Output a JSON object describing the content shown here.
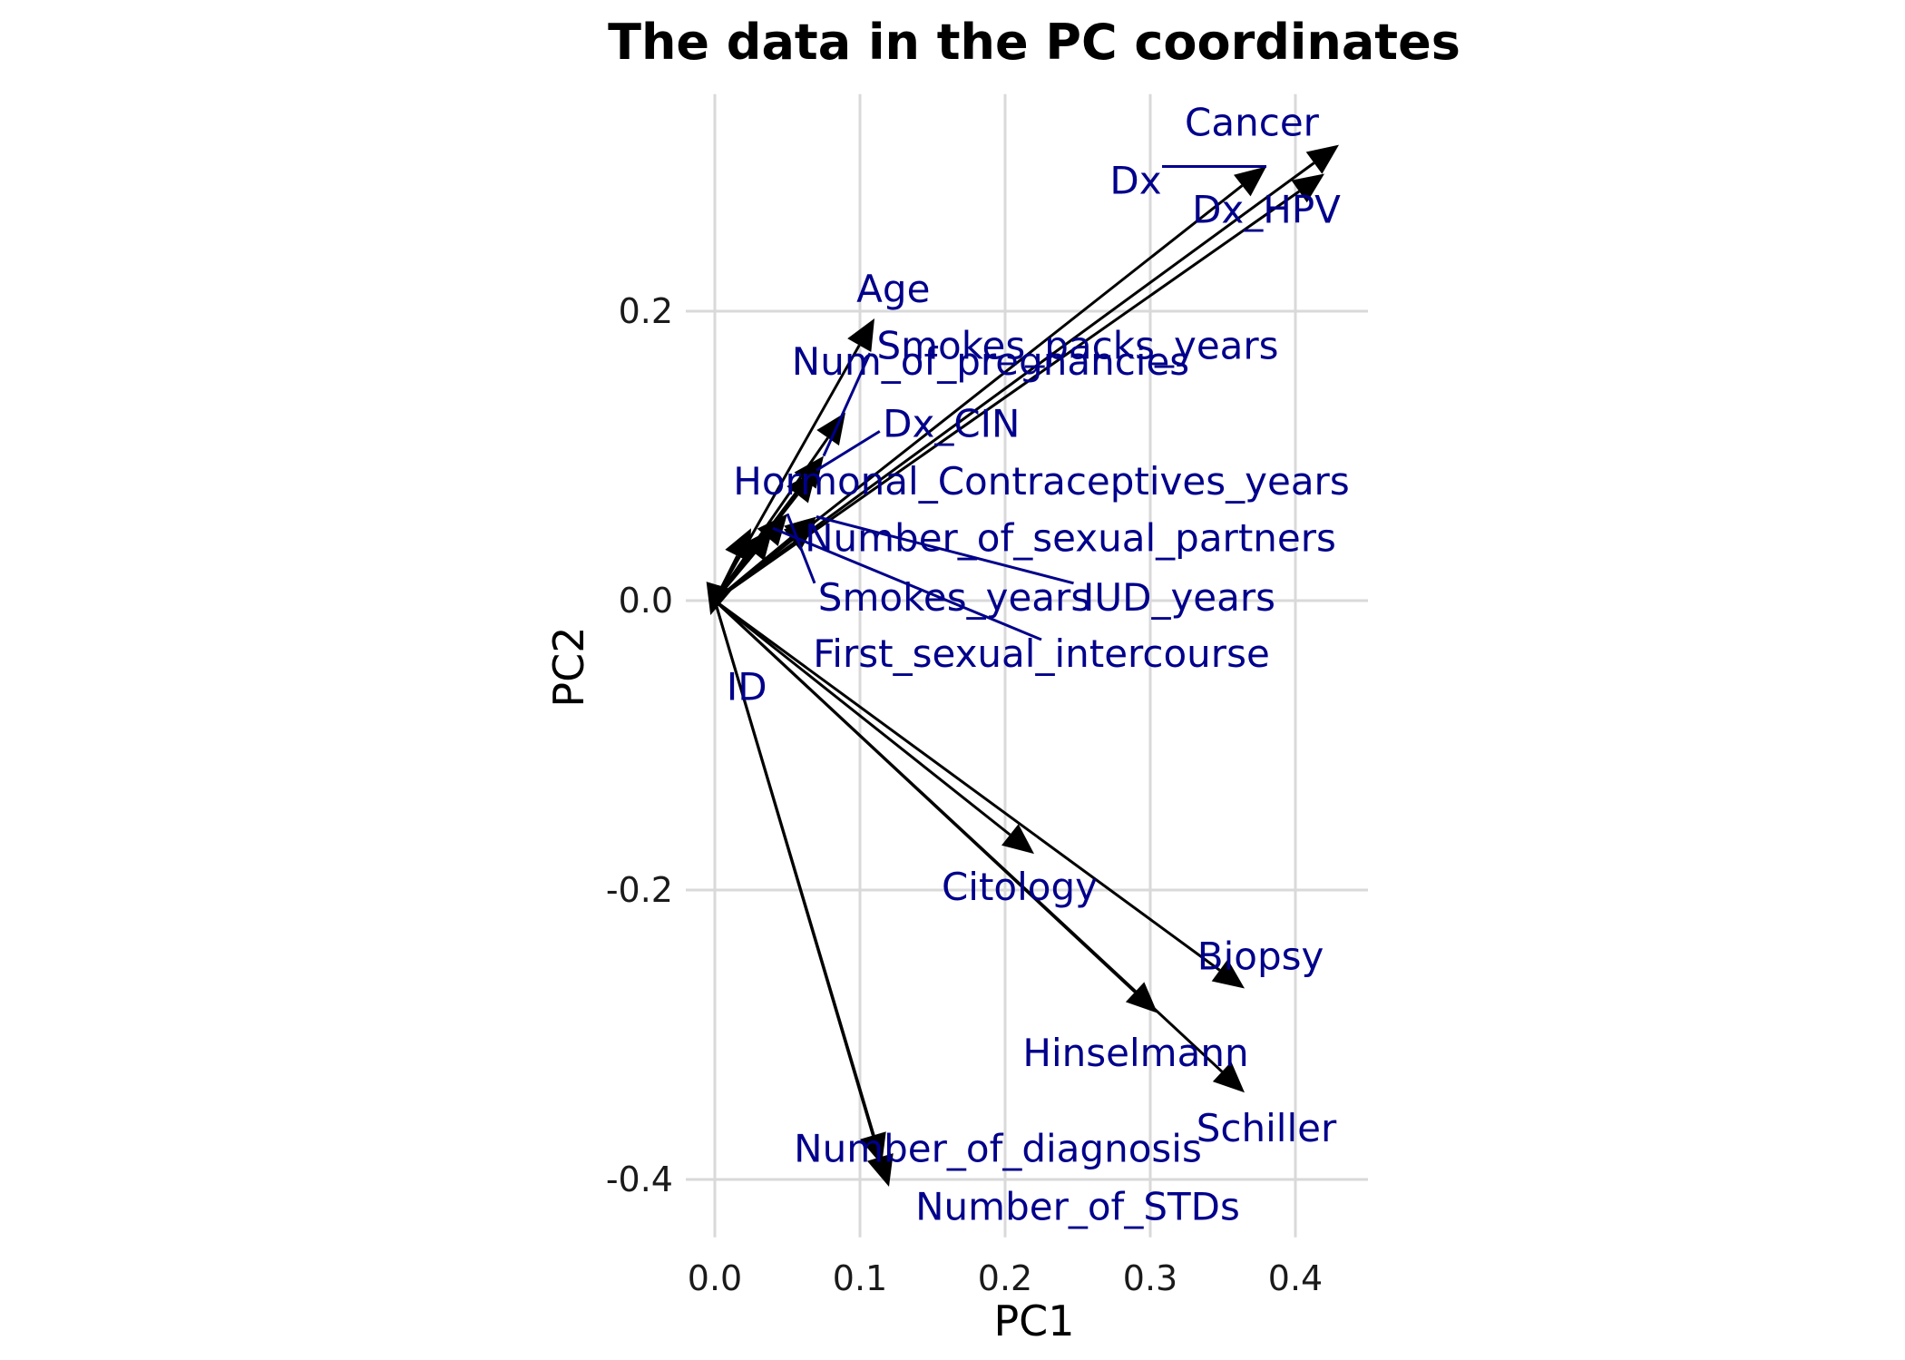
{
  "chart_data": {
    "type": "scatter",
    "subtype": "pca-loadings-biplot",
    "title": "The data in the PC coordinates",
    "xlabel": "PC1",
    "ylabel": "PC2",
    "xlim": [
      -0.02,
      0.45
    ],
    "ylim": [
      -0.44,
      0.35
    ],
    "x_ticks": [
      0.0,
      0.1,
      0.2,
      0.3,
      0.4
    ],
    "x_tick_labels": [
      "0.0",
      "0.1",
      "0.2",
      "0.3",
      "0.4"
    ],
    "y_ticks": [
      -0.4,
      -0.2,
      0.0,
      0.2
    ],
    "y_tick_labels": [
      "-0.4",
      "-0.2",
      "0.0",
      "0.2"
    ],
    "grid": true,
    "arrow_color": "#000000",
    "label_color": "#00008b",
    "vectors": [
      {
        "name": "Cancer",
        "x": 0.43,
        "y": 0.315,
        "label_x": 0.37,
        "label_y": 0.33,
        "leader": false
      },
      {
        "name": "Dx",
        "x": 0.38,
        "y": 0.3,
        "label_x": 0.29,
        "label_y": 0.29,
        "leader": true
      },
      {
        "name": "Dx_HPV",
        "x": 0.42,
        "y": 0.295,
        "label_x": 0.38,
        "label_y": 0.27,
        "leader": false
      },
      {
        "name": "Age",
        "x": 0.11,
        "y": 0.195,
        "label_x": 0.123,
        "label_y": 0.215,
        "leader": false
      },
      {
        "name": "Smokes_packs_years",
        "x": 0.075,
        "y": 0.1,
        "label_x": 0.25,
        "label_y": 0.176,
        "leader": true
      },
      {
        "name": "Num_of_pregnancies",
        "x": 0.09,
        "y": 0.13,
        "label_x": 0.19,
        "label_y": 0.165,
        "leader": false
      },
      {
        "name": "Dx_CIN",
        "x": 0.07,
        "y": 0.09,
        "label_x": 0.163,
        "label_y": 0.122,
        "leader": true
      },
      {
        "name": "Hormonal_Contraceptives_years",
        "x": 0.025,
        "y": 0.05,
        "label_x": 0.225,
        "label_y": 0.082,
        "leader": false
      },
      {
        "name": "Number_of_sexual_partners",
        "x": 0.07,
        "y": 0.055,
        "label_x": 0.245,
        "label_y": 0.043,
        "leader": false
      },
      {
        "name": "Smokes_years",
        "x": 0.05,
        "y": 0.06,
        "label_x": 0.165,
        "label_y": 0.002,
        "leader": true
      },
      {
        "name": "IUD_years",
        "x": 0.07,
        "y": 0.058,
        "label_x": 0.32,
        "label_y": 0.002,
        "leader": true
      },
      {
        "name": "First_sexual_intercourse",
        "x": 0.04,
        "y": 0.05,
        "label_x": 0.225,
        "label_y": -0.037,
        "leader": true
      },
      {
        "name": "ID",
        "x": -0.003,
        "y": -0.01,
        "label_x": 0.022,
        "label_y": -0.06,
        "leader": false
      },
      {
        "name": "Citology",
        "x": 0.22,
        "y": -0.175,
        "label_x": 0.21,
        "label_y": -0.198,
        "leader": false
      },
      {
        "name": "Biopsy",
        "x": 0.365,
        "y": -0.268,
        "label_x": 0.376,
        "label_y": -0.246,
        "leader": false
      },
      {
        "name": "Hinselmann",
        "x": 0.305,
        "y": -0.285,
        "label_x": 0.29,
        "label_y": -0.313,
        "leader": false
      },
      {
        "name": "Schiller",
        "x": 0.365,
        "y": -0.34,
        "label_x": 0.38,
        "label_y": -0.365,
        "leader": false
      },
      {
        "name": "Number_of_diagnosis",
        "x": 0.115,
        "y": -0.39,
        "label_x": 0.195,
        "label_y": -0.379,
        "leader": false
      },
      {
        "name": "Number_of_STDs",
        "x": 0.12,
        "y": -0.405,
        "label_x": 0.25,
        "label_y": -0.419,
        "leader": false
      }
    ]
  }
}
